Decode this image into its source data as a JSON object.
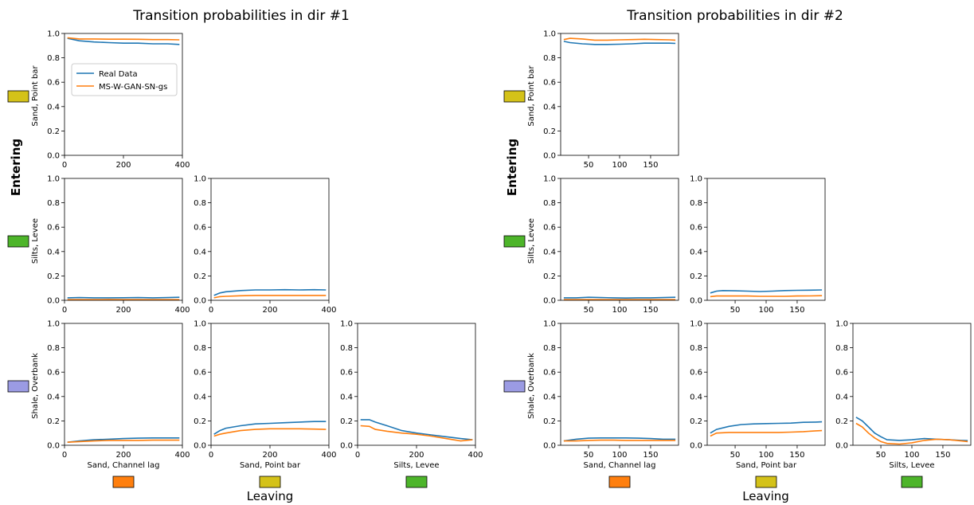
{
  "figure": {
    "yaxis_label": "Entering",
    "xaxis_label": "Leaving",
    "legend": {
      "real": "Real Data",
      "gan": "MS-W-GAN-SN-gs"
    }
  },
  "colors": {
    "real": "#1f77b4",
    "gan": "#ff7f0e",
    "facies": {
      "Sand, Channel lag": "#ff7f0e",
      "Sand, Point bar": "#d4c219",
      "Silts, Levee": "#4db52a",
      "Shale, Overbank": "#9b9be3"
    }
  },
  "chart_data": [
    {
      "type": "line",
      "title": "Transition probabilities in dir #1",
      "legend_position": "inside top-left subplot, upper left",
      "xlim": [
        0,
        400
      ],
      "xticks": [
        0,
        200,
        400
      ],
      "ylim": [
        0,
        1
      ],
      "yticks": [
        0.0,
        0.2,
        0.4,
        0.6,
        0.8,
        1.0
      ],
      "grid": false,
      "row_labels": [
        "Sand, Point bar",
        "Silts, Levee",
        "Shale, Overbank"
      ],
      "col_labels": [
        "Sand, Channel lag",
        "Sand, Point bar",
        "Silts, Levee"
      ],
      "subplots": [
        {
          "row": 0,
          "col": 0,
          "x": [
            10,
            50,
            100,
            150,
            200,
            250,
            300,
            350,
            390
          ],
          "series": [
            {
              "name": "Real Data",
              "values": [
                0.96,
                0.94,
                0.93,
                0.925,
                0.92,
                0.92,
                0.915,
                0.915,
                0.91
              ]
            },
            {
              "name": "MS-W-GAN-SN-gs",
              "values": [
                0.965,
                0.955,
                0.955,
                0.953,
                0.953,
                0.952,
                0.95,
                0.95,
                0.948
              ]
            }
          ]
        },
        {
          "row": 1,
          "col": 0,
          "x": [
            10,
            50,
            100,
            150,
            200,
            250,
            300,
            350,
            390
          ],
          "series": [
            {
              "name": "Real Data",
              "values": [
                0.02,
                0.022,
                0.02,
                0.02,
                0.021,
                0.022,
                0.02,
                0.022,
                0.025
              ]
            },
            {
              "name": "MS-W-GAN-SN-gs",
              "values": [
                0.005,
                0.005,
                0.005,
                0.006,
                0.005,
                0.005,
                0.005,
                0.005,
                0.005
              ]
            }
          ]
        },
        {
          "row": 1,
          "col": 1,
          "x": [
            10,
            30,
            50,
            100,
            150,
            200,
            250,
            300,
            350,
            390
          ],
          "series": [
            {
              "name": "Real Data",
              "values": [
                0.04,
                0.06,
                0.07,
                0.08,
                0.085,
                0.085,
                0.087,
                0.085,
                0.087,
                0.085
              ]
            },
            {
              "name": "MS-W-GAN-SN-gs",
              "values": [
                0.02,
                0.03,
                0.033,
                0.037,
                0.04,
                0.04,
                0.04,
                0.04,
                0.04,
                0.04
              ]
            }
          ]
        },
        {
          "row": 2,
          "col": 0,
          "x": [
            10,
            50,
            100,
            150,
            200,
            250,
            300,
            350,
            390
          ],
          "series": [
            {
              "name": "Real Data",
              "values": [
                0.025,
                0.035,
                0.045,
                0.05,
                0.055,
                0.058,
                0.06,
                0.06,
                0.06
              ]
            },
            {
              "name": "MS-W-GAN-SN-gs",
              "values": [
                0.025,
                0.03,
                0.035,
                0.04,
                0.04,
                0.04,
                0.042,
                0.042,
                0.042
              ]
            }
          ]
        },
        {
          "row": 2,
          "col": 1,
          "x": [
            10,
            30,
            50,
            100,
            150,
            200,
            250,
            300,
            350,
            390
          ],
          "series": [
            {
              "name": "Real Data",
              "values": [
                0.09,
                0.12,
                0.14,
                0.16,
                0.175,
                0.18,
                0.185,
                0.19,
                0.195,
                0.195
              ]
            },
            {
              "name": "MS-W-GAN-SN-gs",
              "values": [
                0.075,
                0.09,
                0.1,
                0.12,
                0.13,
                0.135,
                0.135,
                0.135,
                0.133,
                0.13
              ]
            }
          ]
        },
        {
          "row": 2,
          "col": 2,
          "x": [
            10,
            40,
            60,
            100,
            150,
            200,
            250,
            300,
            350,
            390
          ],
          "series": [
            {
              "name": "Real Data",
              "values": [
                0.21,
                0.21,
                0.19,
                0.16,
                0.12,
                0.1,
                0.085,
                0.07,
                0.055,
                0.045
              ]
            },
            {
              "name": "MS-W-GAN-SN-gs",
              "values": [
                0.16,
                0.155,
                0.13,
                0.115,
                0.1,
                0.09,
                0.075,
                0.055,
                0.035,
                0.045
              ]
            }
          ]
        }
      ]
    },
    {
      "type": "line",
      "title": "Transition probabilities in dir #2",
      "xlim": [
        5,
        195
      ],
      "xticks": [
        50,
        100,
        150
      ],
      "ylim": [
        0,
        1
      ],
      "yticks": [
        0.0,
        0.2,
        0.4,
        0.6,
        0.8,
        1.0
      ],
      "grid": false,
      "row_labels": [
        "Sand, Point bar",
        "Silts, Levee",
        "Shale, Overbank"
      ],
      "col_labels": [
        "Sand, Channel lag",
        "Sand, Point bar",
        "Silts, Levee"
      ],
      "subplots": [
        {
          "row": 0,
          "col": 0,
          "x": [
            10,
            20,
            40,
            60,
            80,
            100,
            120,
            140,
            160,
            180,
            190
          ],
          "series": [
            {
              "name": "Real Data",
              "values": [
                0.935,
                0.925,
                0.915,
                0.91,
                0.91,
                0.912,
                0.915,
                0.92,
                0.92,
                0.92,
                0.918
              ]
            },
            {
              "name": "MS-W-GAN-SN-gs",
              "values": [
                0.95,
                0.96,
                0.955,
                0.945,
                0.945,
                0.948,
                0.95,
                0.952,
                0.95,
                0.948,
                0.945
              ]
            }
          ]
        },
        {
          "row": 1,
          "col": 0,
          "x": [
            10,
            30,
            50,
            70,
            90,
            110,
            130,
            150,
            170,
            190
          ],
          "series": [
            {
              "name": "Real Data",
              "values": [
                0.02,
                0.02,
                0.025,
                0.022,
                0.02,
                0.018,
                0.02,
                0.02,
                0.022,
                0.025
              ]
            },
            {
              "name": "MS-W-GAN-SN-gs",
              "values": [
                0.005,
                0.005,
                0.005,
                0.005,
                0.005,
                0.005,
                0.005,
                0.005,
                0.005,
                0.005
              ]
            }
          ]
        },
        {
          "row": 1,
          "col": 1,
          "x": [
            10,
            20,
            30,
            50,
            70,
            90,
            110,
            130,
            150,
            170,
            190
          ],
          "series": [
            {
              "name": "Real Data",
              "values": [
                0.06,
                0.075,
                0.08,
                0.078,
                0.075,
                0.072,
                0.075,
                0.08,
                0.082,
                0.083,
                0.085
              ]
            },
            {
              "name": "MS-W-GAN-SN-gs",
              "values": [
                0.03,
                0.035,
                0.035,
                0.035,
                0.035,
                0.033,
                0.033,
                0.033,
                0.035,
                0.036,
                0.038
              ]
            }
          ]
        },
        {
          "row": 2,
          "col": 0,
          "x": [
            10,
            30,
            50,
            70,
            90,
            110,
            130,
            150,
            170,
            190
          ],
          "series": [
            {
              "name": "Real Data",
              "values": [
                0.035,
                0.05,
                0.058,
                0.06,
                0.06,
                0.06,
                0.058,
                0.055,
                0.05,
                0.05
              ]
            },
            {
              "name": "MS-W-GAN-SN-gs",
              "values": [
                0.035,
                0.035,
                0.04,
                0.042,
                0.042,
                0.04,
                0.04,
                0.04,
                0.04,
                0.04
              ]
            }
          ]
        },
        {
          "row": 2,
          "col": 1,
          "x": [
            10,
            20,
            40,
            60,
            80,
            100,
            120,
            140,
            160,
            180,
            190
          ],
          "series": [
            {
              "name": "Real Data",
              "values": [
                0.1,
                0.13,
                0.155,
                0.17,
                0.175,
                0.178,
                0.18,
                0.182,
                0.188,
                0.19,
                0.192
              ]
            },
            {
              "name": "MS-W-GAN-SN-gs",
              "values": [
                0.075,
                0.1,
                0.105,
                0.105,
                0.105,
                0.105,
                0.105,
                0.108,
                0.112,
                0.118,
                0.12
              ]
            }
          ]
        },
        {
          "row": 2,
          "col": 2,
          "x": [
            10,
            20,
            30,
            40,
            50,
            60,
            80,
            100,
            120,
            140,
            160,
            180,
            190
          ],
          "series": [
            {
              "name": "Real Data",
              "values": [
                0.23,
                0.2,
                0.15,
                0.1,
                0.07,
                0.045,
                0.04,
                0.045,
                0.055,
                0.05,
                0.045,
                0.04,
                0.038
              ]
            },
            {
              "name": "MS-W-GAN-SN-gs",
              "values": [
                0.18,
                0.15,
                0.1,
                0.06,
                0.03,
                0.015,
                0.01,
                0.02,
                0.04,
                0.05,
                0.045,
                0.035,
                0.03
              ]
            }
          ]
        }
      ]
    }
  ]
}
